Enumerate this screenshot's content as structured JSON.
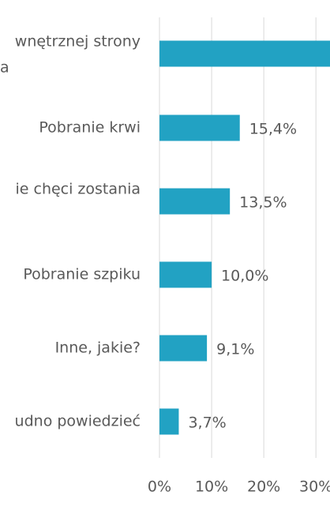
{
  "chart_data": {
    "type": "bar",
    "orientation": "horizontal",
    "categories": [
      [
        "wnętrznej strony",
        "a"
      ],
      [
        "Pobranie krwi"
      ],
      [
        "ie chęci zostania"
      ],
      [
        "Pobranie szpiku"
      ],
      [
        "Inne, jakie?"
      ],
      [
        "udno powiedzieć"
      ]
    ],
    "values": [
      33,
      15.4,
      13.5,
      10.0,
      9.1,
      3.7
    ],
    "value_labels": [
      null,
      "15,4%",
      "13,5%",
      "10,0%",
      "9,1%",
      "3,7%"
    ],
    "color": "#22a2c3",
    "xlim": [
      0,
      32.7
    ],
    "xticks": [
      {
        "value": 0,
        "label": "0%"
      },
      {
        "value": 10,
        "label": "10%"
      },
      {
        "value": 20,
        "label": "20%"
      },
      {
        "value": 30,
        "label": "30%"
      }
    ],
    "grid": true
  }
}
